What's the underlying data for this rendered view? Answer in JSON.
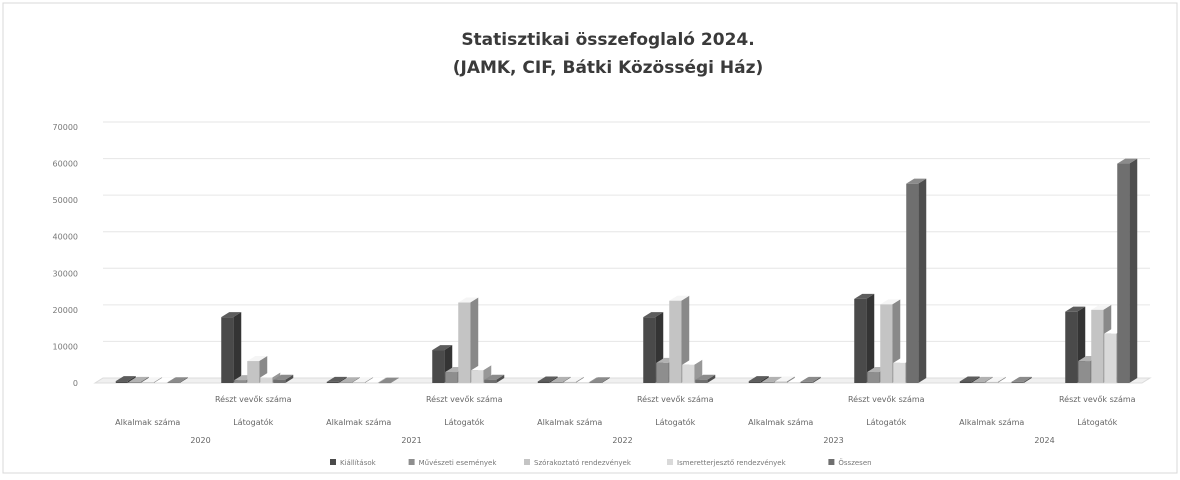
{
  "chart_data": {
    "type": "bar",
    "title": "Statisztikai összefoglaló 2024.",
    "subtitle": "(JAMK, CIF, Bátki Közösségi Ház)",
    "xlabel": "",
    "ylabel": "",
    "ylim": [
      0,
      70000
    ],
    "yticks": [
      "0",
      "10000",
      "20000",
      "30000",
      "40000",
      "50000",
      "60000",
      "70000"
    ],
    "grid": true,
    "legend_position": "bottom",
    "groups": [
      {
        "year": "2020",
        "subcategories": [
          {
            "label": "Alkalmak száma",
            "values": [
              500,
              300,
              200,
              100,
              200
            ]
          },
          {
            "label": "Részt vevők száma",
            "label2": "Látogatók",
            "values": [
              18000,
              800,
              6000,
              1500,
              900
            ]
          }
        ]
      },
      {
        "year": "2021",
        "subcategories": [
          {
            "label": "Alkalmak száma",
            "values": [
              300,
              200,
              200,
              100,
              100
            ]
          },
          {
            "label": "Részt vevők száma",
            "label2": "Látogatók",
            "values": [
              9000,
              3000,
              22000,
              3500,
              900
            ]
          }
        ]
      },
      {
        "year": "2022",
        "subcategories": [
          {
            "label": "Alkalmak száma",
            "values": [
              400,
              300,
              300,
              200,
              200
            ]
          },
          {
            "label": "Részt vevők száma",
            "label2": "Látogatók",
            "values": [
              18000,
              5500,
              22500,
              5000,
              900
            ]
          }
        ]
      },
      {
        "year": "2023",
        "subcategories": [
          {
            "label": "Alkalmak száma",
            "values": [
              500,
              300,
              400,
              200,
              300
            ]
          },
          {
            "label": "Részt vevők száma",
            "label2": "Látogatók",
            "values": [
              23000,
              3000,
              21500,
              5500,
              54500
            ]
          }
        ]
      },
      {
        "year": "2024",
        "subcategories": [
          {
            "label": "Alkalmak száma",
            "values": [
              400,
              300,
              300,
              200,
              300
            ]
          },
          {
            "label": "Részt vevők száma",
            "label2": "Látogatók",
            "values": [
              19500,
              6000,
              20000,
              13500,
              60000
            ]
          }
        ]
      }
    ],
    "series": [
      {
        "name": "Kiállítások",
        "color": "#4a4a4a"
      },
      {
        "name": "Művészeti események",
        "color": "#8e8e8e"
      },
      {
        "name": "Szórakoztató rendezvények",
        "color": "#c4c4c4"
      },
      {
        "name": "Ismeretterjesztő rendezvények",
        "color": "#d9d9d9"
      },
      {
        "name": "Összesen",
        "color": "#6f6f6f"
      }
    ]
  }
}
